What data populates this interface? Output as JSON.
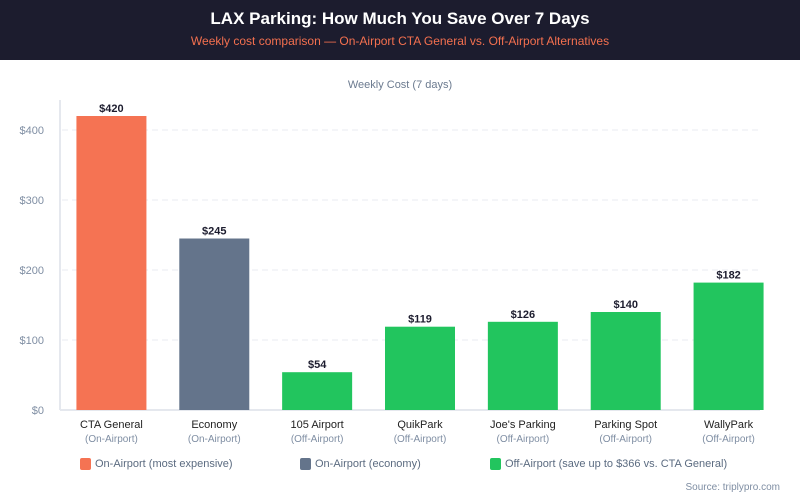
{
  "header": {
    "title": "LAX Parking: How Much You Save Over 7 Days",
    "subtitle": "Weekly cost comparison — On-Airport CTA General vs. Off-Airport Alternatives"
  },
  "chart_data": {
    "type": "bar",
    "title": "Weekly Cost (7 days)",
    "xlabel": "",
    "ylabel": "",
    "ylim": [
      0,
      430
    ],
    "yticks": [
      0,
      100,
      200,
      300,
      400
    ],
    "ytick_labels": [
      "$0",
      "$100",
      "$200",
      "$300",
      "$400"
    ],
    "grid": true,
    "categories": [
      "CTA General",
      "Economy",
      "105 Airport",
      "QuikPark",
      "Joe's Parking",
      "Parking Spot",
      "WallyPark"
    ],
    "subcategories": [
      "(On-Airport)",
      "(On-Airport)",
      "(Off-Airport)",
      "(Off-Airport)",
      "(Off-Airport)",
      "(Off-Airport)",
      "(Off-Airport)"
    ],
    "values": [
      420,
      245,
      54,
      119,
      126,
      140,
      182
    ],
    "value_labels": [
      "$420",
      "$245",
      "$54",
      "$119",
      "$126",
      "$140",
      "$182"
    ],
    "bar_groups": [
      "most_expensive",
      "economy",
      "off_airport",
      "off_airport",
      "off_airport",
      "off_airport",
      "off_airport"
    ],
    "colors": {
      "most_expensive": "#f57353",
      "economy": "#64748b",
      "off_airport": "#22c55e"
    },
    "legend_position": "bottom",
    "legend": [
      {
        "label": "On-Airport (most expensive)",
        "group": "most_expensive"
      },
      {
        "label": "On-Airport (economy)",
        "group": "economy"
      },
      {
        "label": "Off-Airport (save up to $366 vs. CTA General)",
        "group": "off_airport"
      }
    ]
  },
  "source": "Source: triplypro.com"
}
